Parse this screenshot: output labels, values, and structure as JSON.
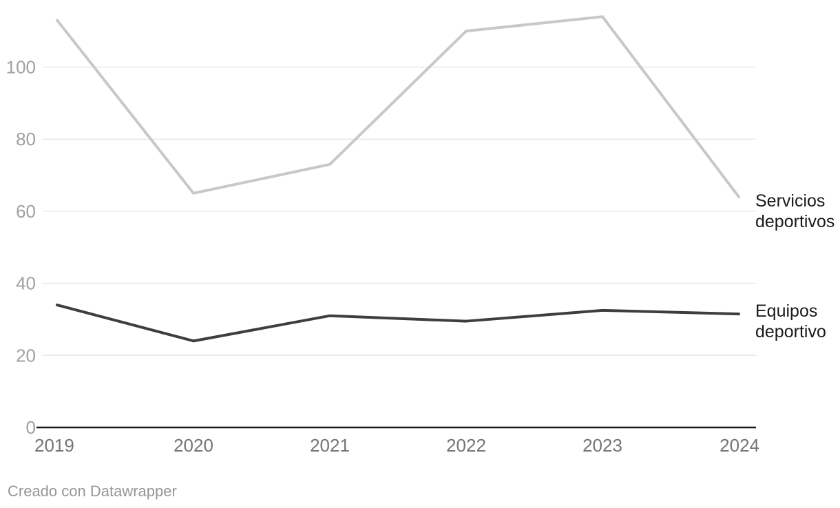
{
  "footer": {
    "credit": "Creado con Datawrapper"
  },
  "colors": {
    "background": "#ffffff",
    "gridline": "#e9e9e9",
    "axis_line": "#191919",
    "y_tick_label": "#a0a0a0",
    "x_tick_label": "#757575",
    "series_label_text": "#1a1a1a",
    "credit_text": "#969696"
  },
  "chart_data": {
    "type": "line",
    "title": "",
    "xlabel": "",
    "ylabel": "",
    "x": [
      2019,
      2020,
      2021,
      2022,
      2023,
      2024
    ],
    "series": [
      {
        "name": "Servicios deportivos",
        "color": "#c8c8c8",
        "values": [
          113,
          65,
          73,
          110,
          114,
          64
        ]
      },
      {
        "name": "Equipos deportivo",
        "color": "#3e3e3e",
        "values": [
          34,
          24,
          31,
          29.5,
          32.5,
          31.5
        ]
      }
    ],
    "yticks": [
      0,
      20,
      40,
      60,
      80,
      100
    ],
    "ylim": [
      0,
      115
    ],
    "grid": "horizontal-only",
    "legend_position": "labels-right-of-line-ends"
  }
}
